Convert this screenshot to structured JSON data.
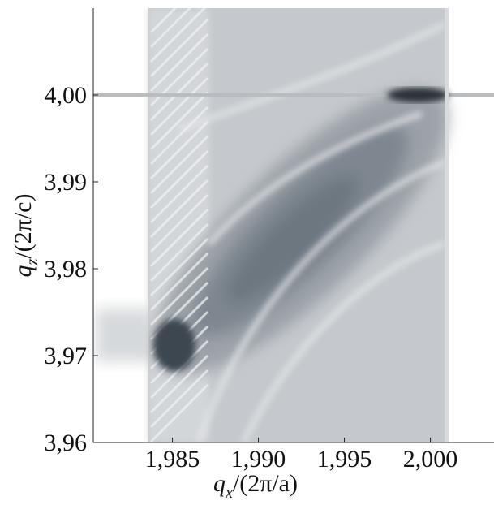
{
  "chart_data": {
    "type": "contour",
    "x_label": {
      "symbol": "q",
      "sub": "x",
      "rest": "/(2π/a)"
    },
    "y_label": {
      "symbol": "q",
      "sub": "z",
      "rest": "/(2π/c)"
    },
    "xlim": [
      1.9804,
      2.0037
    ],
    "ylim": [
      3.96,
      4.01
    ],
    "xticks": [
      {
        "value": 1.985,
        "label": "1,985"
      },
      {
        "value": 1.99,
        "label": "1,990"
      },
      {
        "value": 1.995,
        "label": "1,995"
      },
      {
        "value": 2.0,
        "label": "2,000"
      }
    ],
    "yticks": [
      {
        "value": 3.96,
        "label": "3,96"
      },
      {
        "value": 3.97,
        "label": "3,97"
      },
      {
        "value": 3.98,
        "label": "3,98"
      },
      {
        "value": 3.99,
        "label": "3,99"
      },
      {
        "value": 4.0,
        "label": "4,00"
      }
    ]
  }
}
